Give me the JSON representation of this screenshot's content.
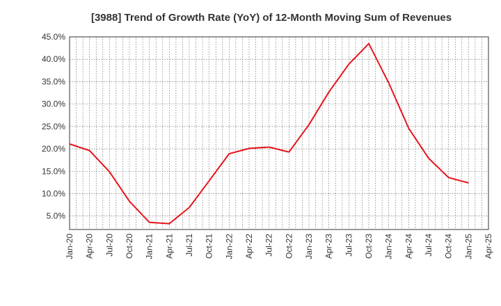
{
  "chart_data": {
    "type": "line",
    "title": "[3988]  Trend of Growth Rate (YoY) of 12-Month Moving Sum of Revenues",
    "xlabel": "",
    "ylabel": "",
    "x_ticks": [
      "Jan-20",
      "Apr-20",
      "Jul-20",
      "Oct-20",
      "Jan-21",
      "Apr-21",
      "Jul-21",
      "Oct-21",
      "Jan-22",
      "Apr-22",
      "Jul-22",
      "Oct-22",
      "Jan-23",
      "Apr-23",
      "Jul-23",
      "Oct-23",
      "Jan-24",
      "Apr-24",
      "Jul-24",
      "Oct-24",
      "Jan-25",
      "Apr-25"
    ],
    "y_ticks": [
      "5.0%",
      "10.0%",
      "15.0%",
      "20.0%",
      "25.0%",
      "30.0%",
      "35.0%",
      "40.0%",
      "45.0%"
    ],
    "y_tick_values": [
      5,
      10,
      15,
      20,
      25,
      30,
      35,
      40,
      45
    ],
    "ylim": [
      2,
      45
    ],
    "grid": true,
    "line_color": "#e8141b",
    "series": [
      {
        "x": [
          "Jan-20",
          "Apr-20",
          "Jul-20",
          "Oct-20",
          "Jan-21",
          "Apr-21",
          "Jul-21",
          "Oct-21",
          "Jan-22",
          "Apr-22",
          "Jul-22",
          "Oct-22",
          "Jan-23",
          "Apr-23",
          "Jul-23",
          "Oct-23",
          "Jan-24",
          "Apr-24",
          "Jul-24",
          "Oct-24",
          "Jan-25"
        ],
        "values": [
          21.1,
          19.6,
          14.9,
          8.3,
          3.6,
          3.3,
          6.9,
          12.9,
          18.9,
          20.1,
          20.4,
          19.3,
          25.4,
          32.7,
          38.9,
          43.5,
          34.7,
          24.6,
          17.9,
          13.6,
          12.4
        ]
      }
    ]
  }
}
